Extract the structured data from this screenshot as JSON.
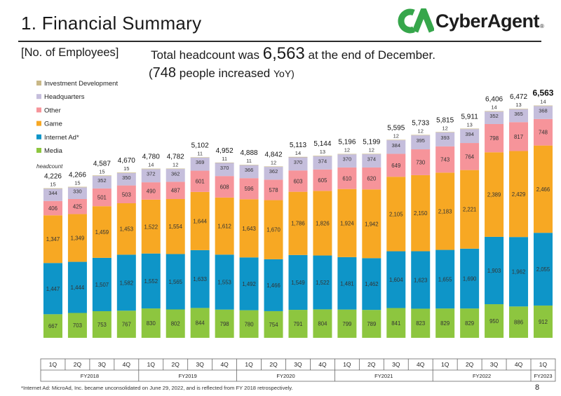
{
  "header": {
    "title": "1.  Financial Summary",
    "logo_text": "CyberAgent",
    "logo_reg": "®"
  },
  "section_label": "[No. of Employees]",
  "headline": {
    "line1_pre": "Total headcount was ",
    "line1_value": "6,563",
    "line1_post": " at the end of December.",
    "line2_open": "(",
    "line2_value": "748",
    "line2_text": " people increased ",
    "line2_yoy": "YoY)"
  },
  "footnote": "*Internet Ad: MicroAd, Inc. became unconsolidated on June 29, 2022, and is reflected from FY 2018 retrospectively.",
  "page_number": "8",
  "colors": {
    "media": "#8dc63f",
    "internet_ad": "#0e95c8",
    "game": "#f7a823",
    "other": "#f6949a",
    "headquarters": "#c5bedc",
    "investment": "#c9b887"
  },
  "chart_data": {
    "type": "bar",
    "stacked": true,
    "unit_label": "headcount",
    "categories": [
      "1Q",
      "2Q",
      "3Q",
      "4Q",
      "1Q",
      "2Q",
      "3Q",
      "4Q",
      "1Q",
      "2Q",
      "3Q",
      "4Q",
      "1Q",
      "2Q",
      "3Q",
      "4Q",
      "1Q",
      "2Q",
      "3Q",
      "4Q",
      "1Q"
    ],
    "fiscal_years": [
      {
        "label": "FY2018",
        "count": 4
      },
      {
        "label": "FY2019",
        "count": 4
      },
      {
        "label": "FY2020",
        "count": 4
      },
      {
        "label": "FY2021",
        "count": 4
      },
      {
        "label": "FY2022",
        "count": 4
      },
      {
        "label": "FY2023",
        "count": 1
      }
    ],
    "series": [
      {
        "name": "Media",
        "color_key": "media",
        "values": [
          667,
          703,
          753,
          767,
          830,
          802,
          844,
          798,
          780,
          754,
          791,
          804,
          799,
          789,
          841,
          823,
          829,
          829,
          950,
          886,
          912
        ]
      },
      {
        "name": "Internet Ad*",
        "color_key": "internet_ad",
        "values": [
          1447,
          1444,
          1507,
          1582,
          1552,
          1565,
          1633,
          1553,
          1492,
          1466,
          1549,
          1522,
          1481,
          1462,
          1604,
          1623,
          1655,
          1690,
          1903,
          1962,
          2055
        ]
      },
      {
        "name": "Game",
        "color_key": "game",
        "values": [
          1347,
          1349,
          1459,
          1453,
          1522,
          1554,
          1644,
          1612,
          1643,
          1670,
          1786,
          1826,
          1924,
          1942,
          2105,
          2150,
          2183,
          2221,
          2389,
          2429,
          2466
        ]
      },
      {
        "name": "Other",
        "color_key": "other",
        "values": [
          406,
          425,
          501,
          503,
          490,
          487,
          601,
          608,
          596,
          578,
          603,
          605,
          610,
          620,
          649,
          730,
          743,
          764,
          798,
          817,
          748
        ]
      },
      {
        "name": "Headquarters",
        "color_key": "headquarters",
        "values": [
          344,
          330,
          352,
          350,
          372,
          362,
          369,
          370,
          366,
          362,
          370,
          374,
          370,
          374,
          384,
          395,
          393,
          394,
          352,
          365,
          368
        ]
      },
      {
        "name": "Investment Development",
        "color_key": "investment",
        "values": [
          15,
          15,
          15,
          15,
          14,
          12,
          11,
          11,
          11,
          12,
          14,
          13,
          12,
          12,
          12,
          12,
          12,
          13,
          14,
          13,
          14
        ]
      }
    ],
    "totals": [
      "4,226",
      "4,266",
      "4,587",
      "4,670",
      "4,780",
      "4,782",
      "5,102",
      "4,952",
      "4,888",
      "4,842",
      "5,113",
      "5,144",
      "5,196",
      "5,199",
      "5,595",
      "5,733",
      "5,815",
      "5,911",
      "6,406",
      "6,472",
      "6,563"
    ],
    "ylim": [
      0,
      7000
    ]
  }
}
